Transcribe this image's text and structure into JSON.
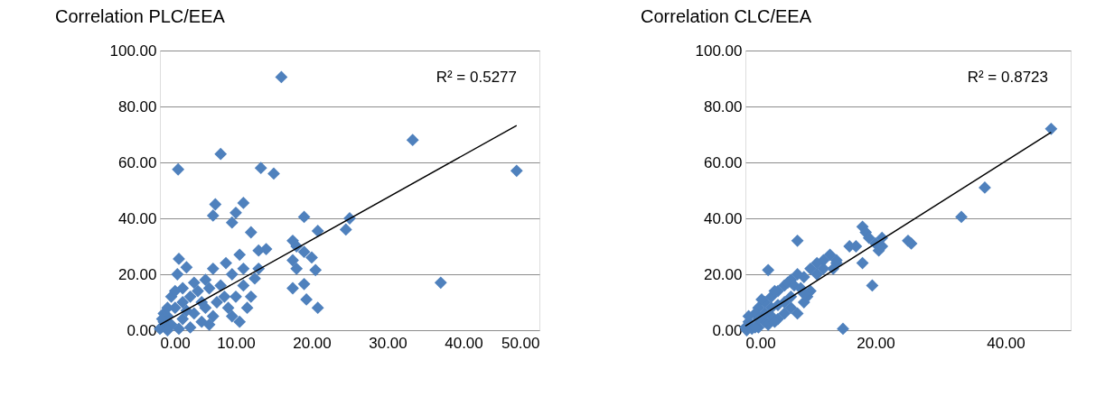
{
  "chart_data": [
    {
      "type": "scatter",
      "title": "Correlation PLC/EEA",
      "annotations": [
        "R² = 0.5277"
      ],
      "grid": "y",
      "xlim": [
        0,
        50
      ],
      "xticks": [
        {
          "value": 0,
          "label": "0.00"
        },
        {
          "value": 10,
          "label": "10.00"
        },
        {
          "value": 20,
          "label": "20.00"
        },
        {
          "value": 30,
          "label": "30.00"
        },
        {
          "value": 40,
          "label": "40.00"
        },
        {
          "value": 50,
          "label": "50.00"
        }
      ],
      "ylim": [
        0,
        100
      ],
      "yticks": [
        {
          "value": 0,
          "label": "0.00"
        },
        {
          "value": 20,
          "label": "20.00"
        },
        {
          "value": 40,
          "label": "40.00"
        },
        {
          "value": 60,
          "label": "60.00"
        },
        {
          "value": 80,
          "label": "80.00"
        },
        {
          "value": 100,
          "label": "100.00"
        }
      ],
      "series": [
        {
          "marker": "diamond",
          "color": "#4f81bd",
          "x": [
            2.4,
            8,
            16,
            13.3,
            15,
            33.3,
            47,
            37,
            7.3,
            11,
            7,
            10,
            9.5,
            19,
            25,
            24.5,
            20.8,
            12,
            14,
            13,
            17.5,
            18,
            19,
            20,
            17.5,
            18,
            20.5,
            17.5,
            19,
            19.3,
            20.8,
            11.5,
            10.5,
            8.7,
            10.5,
            11,
            12.5,
            11,
            9.5,
            7,
            2.5,
            2.3,
            3.5,
            6.5,
            5,
            4,
            3,
            2,
            1,
            0.5,
            0.2,
            0,
            1.5,
            3,
            4.5,
            6,
            7.5,
            6.5,
            7,
            8.5,
            9,
            5.5,
            4,
            2.5,
            1,
            3.5,
            5.5,
            6,
            4.5,
            3,
            1.5,
            2,
            8,
            10,
            9.5,
            0.5,
            0.3,
            1,
            12,
            13
          ],
          "values": [
            57.5,
            63,
            90.5,
            58,
            56,
            68,
            57,
            17,
            45,
            45.5,
            41,
            42,
            38.5,
            40.5,
            40,
            36,
            35.5,
            35,
            29,
            28.5,
            32,
            30,
            28,
            26,
            25,
            22,
            21.5,
            15,
            16.5,
            11,
            8,
            8,
            3,
            24,
            27,
            22,
            18.5,
            16,
            20,
            22,
            25.5,
            20,
            22.5,
            15,
            14,
            12,
            10,
            8,
            5,
            3,
            1,
            0.5,
            2,
            4,
            6,
            8,
            10,
            2,
            5,
            12,
            8,
            3,
            1,
            0.5,
            0,
            7,
            10,
            18,
            17,
            15,
            12,
            14,
            16,
            12,
            5,
            6,
            4,
            8,
            12,
            22
          ]
        },
        {
          "type": "line",
          "marker": "none",
          "color": "#000000",
          "x": [
            0,
            47
          ],
          "values": [
            2,
            73.2
          ]
        }
      ]
    },
    {
      "type": "scatter",
      "title": "Correlation CLC/EEA",
      "annotations": [
        "R² = 0.8723"
      ],
      "grid": "y",
      "xlim": [
        0,
        50
      ],
      "xticks": [
        {
          "value": 0,
          "label": "0.00"
        },
        {
          "value": 20,
          "label": "20.00"
        },
        {
          "value": 40,
          "label": "40.00"
        }
      ],
      "ylim": [
        0,
        100
      ],
      "yticks": [
        {
          "value": 0,
          "label": "0.00"
        },
        {
          "value": 20,
          "label": "20.00"
        },
        {
          "value": 40,
          "label": "40.00"
        },
        {
          "value": 60,
          "label": "60.00"
        },
        {
          "value": 80,
          "label": "80.00"
        },
        {
          "value": 100,
          "label": "100.00"
        }
      ],
      "series": [
        {
          "marker": "diamond",
          "color": "#4f81bd",
          "x": [
            47,
            36.8,
            33.2,
            25,
            25.5,
            19.5,
            15,
            8,
            3.5,
            18,
            18.5,
            19,
            20,
            21,
            20.5,
            17,
            16,
            18,
            13,
            12,
            11,
            14,
            13.5,
            10,
            9,
            8,
            7,
            6,
            5,
            4,
            3,
            2,
            1.5,
            0.5,
            0,
            0.2,
            1,
            2,
            3,
            4,
            5,
            6,
            7,
            8,
            9,
            9.5,
            10,
            11,
            12,
            7,
            6,
            5,
            4,
            3,
            2,
            0.5,
            2.5,
            4.5,
            6.5,
            7.5,
            8.5,
            9,
            3.5,
            4.5,
            1.5,
            14,
            21
          ],
          "values": [
            72,
            51,
            40.5,
            32,
            31,
            16,
            0.5,
            32,
            21.5,
            37,
            35,
            33,
            31,
            33,
            28.5,
            30,
            30,
            24,
            27,
            25,
            24,
            24,
            22,
            22,
            19,
            20,
            18,
            16,
            14,
            12,
            10,
            8,
            6,
            3,
            1,
            0,
            0.5,
            1,
            3,
            5,
            4,
            6,
            8,
            6,
            10,
            12,
            14,
            20,
            22,
            12,
            10,
            9,
            8,
            6,
            4,
            5,
            11,
            14,
            17,
            16,
            15,
            13,
            2,
            3,
            1,
            25,
            30
          ]
        },
        {
          "type": "line",
          "marker": "none",
          "color": "#000000",
          "x": [
            0,
            47
          ],
          "values": [
            1.5,
            70.8
          ]
        }
      ]
    }
  ]
}
